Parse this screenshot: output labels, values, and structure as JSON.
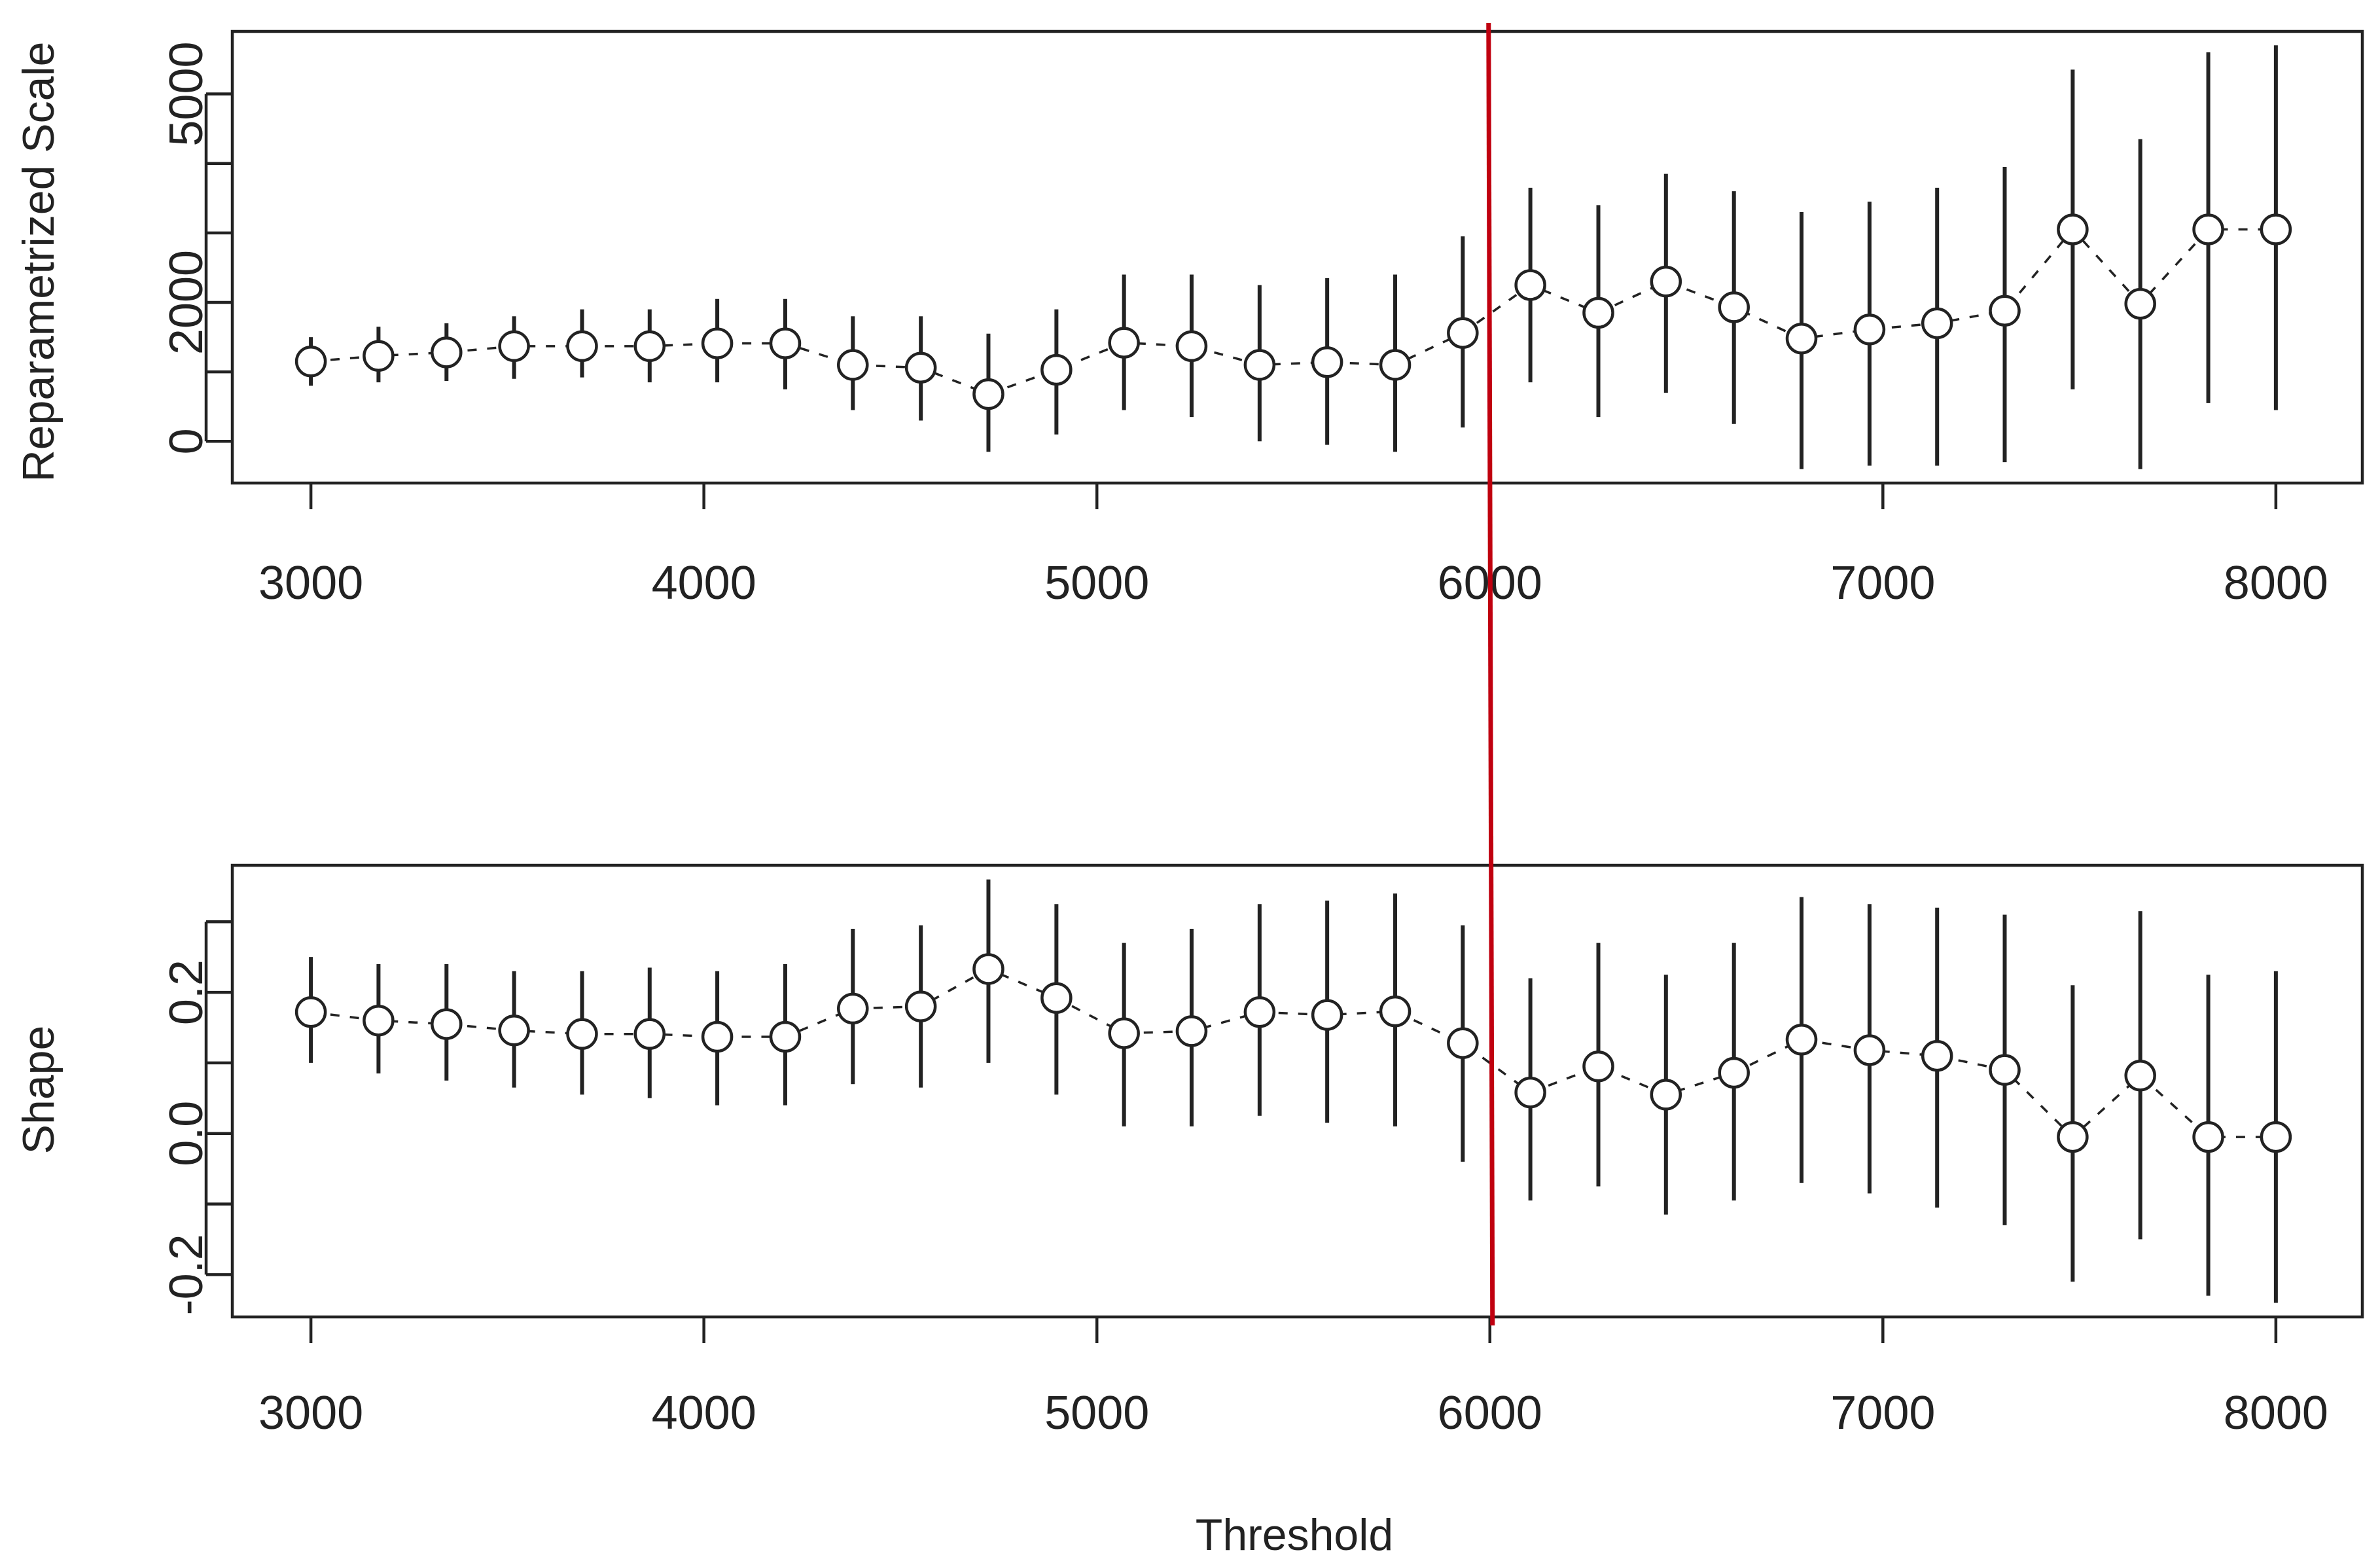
{
  "chart_data": [
    {
      "type": "scatter",
      "panel": "top",
      "ylabel": "Reparametrized Scale",
      "xlim": [
        2800,
        8220
      ],
      "ylim": [
        -600,
        5900
      ],
      "xticks": [
        3000,
        4000,
        5000,
        6000,
        7000,
        8000
      ],
      "yticks": [
        0,
        2000,
        5000
      ],
      "yticks_minor": [
        1000,
        3000,
        4000
      ],
      "x": [
        3000,
        3172,
        3345,
        3517,
        3690,
        3862,
        4034,
        4207,
        4379,
        4552,
        4724,
        4897,
        5069,
        5241,
        5414,
        5586,
        5759,
        5931,
        6103,
        6276,
        6448,
        6621,
        6793,
        6966,
        7138,
        7310,
        7483,
        7655,
        7828,
        8000
      ],
      "y": [
        1150,
        1230,
        1280,
        1370,
        1370,
        1370,
        1410,
        1410,
        1100,
        1060,
        680,
        1030,
        1420,
        1370,
        1100,
        1140,
        1100,
        1560,
        2250,
        1850,
        2300,
        1930,
        1480,
        1610,
        1700,
        1880,
        3050,
        1980,
        3050,
        3050
      ],
      "lower": [
        800,
        850,
        870,
        900,
        920,
        850,
        850,
        750,
        450,
        300,
        -150,
        100,
        450,
        350,
        0,
        -50,
        -150,
        200,
        850,
        350,
        700,
        250,
        -400,
        -350,
        -350,
        -300,
        750,
        -400,
        550,
        450
      ],
      "upper": [
        1500,
        1650,
        1700,
        1800,
        1900,
        1900,
        2050,
        2050,
        1800,
        1800,
        1550,
        1900,
        2400,
        2400,
        2250,
        2350,
        2400,
        2950,
        3650,
        3400,
        3850,
        3600,
        3300,
        3450,
        3650,
        3950,
        5350,
        4350,
        5600,
        5700
      ],
      "connector": "dashed",
      "marker": "open-circle"
    },
    {
      "type": "scatter",
      "panel": "bottom",
      "ylabel": "Shape",
      "xlabel": "Threshold",
      "xlim": [
        2800,
        8220
      ],
      "ylim": [
        -0.26,
        0.38
      ],
      "xticks": [
        3000,
        4000,
        5000,
        6000,
        7000,
        8000
      ],
      "yticks": [
        -0.2,
        0.0,
        0.2
      ],
      "ytick_labels": [
        "-0.2",
        "0.0",
        "0.2"
      ],
      "yticks_minor": [
        -0.1,
        0.1,
        0.3
      ],
      "x": [
        3000,
        3172,
        3345,
        3517,
        3690,
        3862,
        4034,
        4207,
        4379,
        4552,
        4724,
        4897,
        5069,
        5241,
        5414,
        5586,
        5759,
        5931,
        6103,
        6276,
        6448,
        6621,
        6793,
        6966,
        7138,
        7310,
        7483,
        7655,
        7828,
        8000
      ],
      "y": [
        0.172,
        0.16,
        0.155,
        0.146,
        0.141,
        0.141,
        0.137,
        0.137,
        0.177,
        0.18,
        0.233,
        0.192,
        0.142,
        0.145,
        0.172,
        0.168,
        0.173,
        0.128,
        0.058,
        0.095,
        0.055,
        0.086,
        0.133,
        0.118,
        0.11,
        0.09,
        -0.005,
        0.082,
        -0.005,
        -0.005
      ],
      "lower": [
        0.1,
        0.085,
        0.075,
        0.065,
        0.055,
        0.05,
        0.04,
        0.04,
        0.07,
        0.065,
        0.1,
        0.055,
        0.01,
        0.01,
        0.025,
        0.015,
        0.01,
        -0.04,
        -0.095,
        -0.075,
        -0.115,
        -0.095,
        -0.07,
        -0.085,
        -0.105,
        -0.13,
        -0.21,
        -0.15,
        -0.23,
        -0.24
      ],
      "upper": [
        0.25,
        0.24,
        0.24,
        0.23,
        0.23,
        0.235,
        0.23,
        0.24,
        0.29,
        0.295,
        0.36,
        0.325,
        0.27,
        0.29,
        0.325,
        0.33,
        0.34,
        0.295,
        0.22,
        0.27,
        0.225,
        0.27,
        0.335,
        0.325,
        0.32,
        0.31,
        0.21,
        0.315,
        0.225,
        0.23
      ],
      "connector": "dashed",
      "marker": "open-circle"
    }
  ],
  "threshold_line": {
    "x": 6000,
    "color": "#c0000f"
  },
  "colors": {
    "ink": "#222222",
    "threshold": "#c0000f",
    "background": "#ffffff"
  }
}
